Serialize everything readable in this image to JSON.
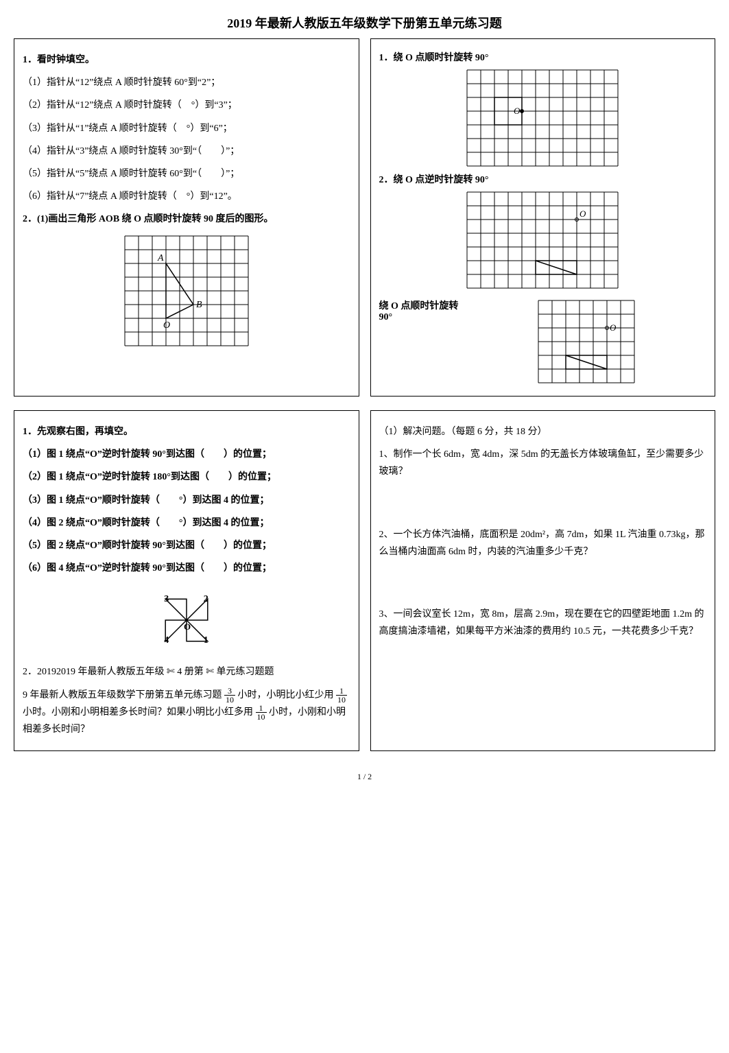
{
  "title": "2019 年最新人教版五年级数学下册第五单元练习题",
  "box1": {
    "heading": "1．看时钟填空。",
    "lines": [
      "（1）指针从“12”绕点 A 顺时针旋转 60°到“2”；",
      "（2）指针从“12”绕点 A 顺时针旋转（　°）到“3”；",
      "（3）指针从“1”绕点 A 顺时针旋转（　°）到“6”；",
      "（4）指针从“3”绕点 A 顺时针旋转 30°到“（　　）”；",
      "（5）指针从“5”绕点 A 顺时针旋转 60°到“（　　）”；",
      "（6）指针从“7”绕点 A 顺时针旋转（　°）到“12”。"
    ],
    "q2": "2．(1)画出三角形 AOB 绕 O 点顺时针旋转 90 度后的图形。",
    "grid": {
      "cols": 9,
      "rows": 8,
      "cell": 20,
      "O": [
        3,
        6
      ],
      "A": [
        3,
        2
      ],
      "B": [
        5,
        5
      ],
      "stroke": "#000000"
    }
  },
  "box2": {
    "h1": "1．绕 O 点顺时针旋转 90°",
    "grid1": {
      "cols": 11,
      "rows": 7,
      "cell": 20,
      "O": [
        4,
        3
      ],
      "stroke": "#000000",
      "shape": [
        [
          2,
          2
        ],
        [
          4,
          2
        ],
        [
          4,
          4
        ],
        [
          2,
          4
        ]
      ]
    },
    "h2": "2．绕 O 点逆时针旋转 90°",
    "grid2": {
      "cols": 11,
      "rows": 7,
      "cell": 20,
      "O": [
        8,
        2
      ],
      "stroke": "#000000",
      "flag_rect": [
        [
          5,
          5
        ],
        [
          8,
          5
        ],
        [
          8,
          6
        ],
        [
          5,
          6
        ]
      ],
      "flag_pole": [
        [
          5,
          5
        ],
        [
          5,
          7
        ]
      ]
    },
    "h3": "绕 O 点顺时针旋转 90°",
    "grid3": {
      "cols": 7,
      "rows": 6,
      "cell": 20,
      "O": [
        5,
        2
      ],
      "stroke": "#000000",
      "flag_rect": [
        [
          2,
          4
        ],
        [
          5,
          4
        ],
        [
          5,
          5
        ],
        [
          2,
          5
        ]
      ],
      "flag_pole": [
        [
          2,
          4
        ],
        [
          2,
          6
        ]
      ]
    }
  },
  "box3": {
    "heading": "1．先观察右图，再填空。",
    "lines": [
      "（1）图 1 绕点“O”逆时针旋转 90°到达图（　　）的位置；",
      "（2）图 1 绕点“O”逆时针旋转 180°到达图（　　）的位置；",
      "（3）图 1 绕点“O”顺时针旋转（　　°）到达图 4 的位置；",
      "（4）图 2 绕点“O”顺时针旋转（　　°）到达图 4 的位置；",
      "（5）图 2 绕点“O”顺时针旋转 90°到达图（　　）的位置；",
      "（6）图 4 绕点“O”逆时针旋转 90°到达图（　　）的位置；"
    ],
    "pinwheel": {
      "size": 110,
      "labels": [
        "1",
        "2",
        "3",
        "4"
      ],
      "O_label": "O"
    },
    "p2a": "2．20192019 年最新人教版五年级",
    "p2b": "册第",
    "p2c": "单元练习题题",
    "p3a": "9 年最新人教版五年级数学下册第五单元练习题",
    "p3b": "小时，小明比小红少用",
    "p3c": "小时。小刚和小明相差多长时间？如果小明比小红多用",
    "p3d": "小时，小刚和小明相差多长时间？",
    "frac_3_10": {
      "n": "3",
      "d": "10"
    },
    "frac_1_10": {
      "n": "1",
      "d": "10"
    }
  },
  "box4": {
    "heading": "（1）解决问题。（每题 6 分，共 18 分）",
    "q1": "1、制作一个长 6dm，宽 4dm，深 5dm 的无盖长方体玻璃鱼缸，至少需要多少玻璃？",
    "q2": "2、一个长方体汽油桶，底面积是 20dm²，高 7dm，如果 1L 汽油重 0.73kg，那么当桶内油面高 6dm 时，内装的汽油重多少千克？",
    "q3": "3、一间会议室长 12m，宽 8m，层高 2.9m，现在要在它的四壁距地面 1.2m 的高度搞油漆墙裙，如果每平方米油漆的费用约 10.5 元，一共花费多少千克？"
  },
  "footer": "1 / 2"
}
